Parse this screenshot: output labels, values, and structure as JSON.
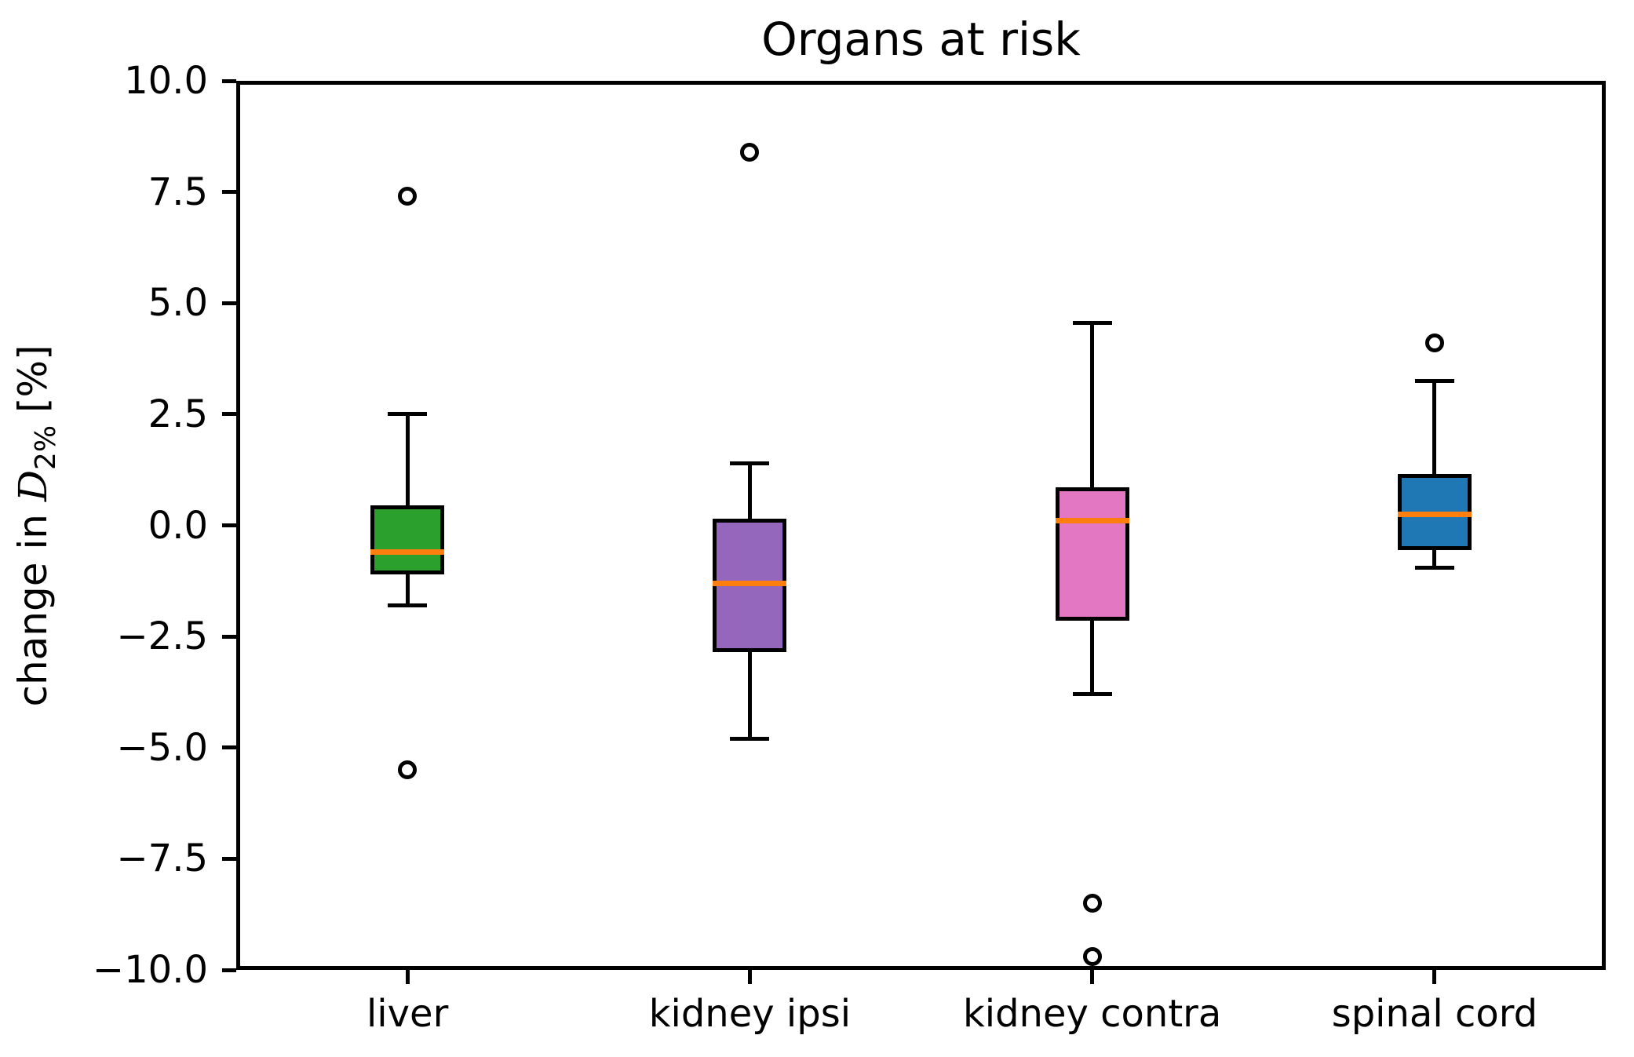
{
  "chart_data": {
    "type": "box",
    "title": "Organs at risk",
    "ylabel": {
      "prefix": "change in ",
      "symbol": "D",
      "subscript": "2%",
      "suffix": " [%]"
    },
    "ylim": [
      -10,
      10
    ],
    "ytick_values": [
      10.0,
      7.5,
      5.0,
      2.5,
      0.0,
      -2.5,
      -5.0,
      -7.5,
      -10.0
    ],
    "ytick_labels": [
      "10.0",
      "7.5",
      "5.0",
      "2.5",
      "0.0",
      "−2.5",
      "−5.0",
      "−7.5",
      "−10.0"
    ],
    "categories": [
      "liver",
      "kidney ipsi",
      "kidney contra",
      "spinal cord"
    ],
    "series": [
      {
        "name": "liver",
        "color": "#2ca02c",
        "whisker_low": -1.8,
        "q1": -1.1,
        "median": -0.6,
        "q3": 0.45,
        "whisker_high": 2.5,
        "outliers": [
          7.4,
          -5.5
        ]
      },
      {
        "name": "kidney ipsi",
        "color": "#9467bd",
        "whisker_low": -4.8,
        "q1": -2.85,
        "median": -1.3,
        "q3": 0.15,
        "whisker_high": 1.4,
        "outliers": [
          8.4
        ]
      },
      {
        "name": "kidney contra",
        "color": "#e377c2",
        "whisker_low": -3.8,
        "q1": -2.15,
        "median": 0.1,
        "q3": 0.85,
        "whisker_high": 4.55,
        "outliers": [
          -8.5,
          -9.7
        ]
      },
      {
        "name": "spinal cord",
        "color": "#1f77b4",
        "whisker_low": -0.95,
        "q1": -0.55,
        "median": 0.25,
        "q3": 1.15,
        "whisker_high": 3.25,
        "outliers": [
          4.1
        ]
      }
    ],
    "median_color": "#ff7f0e",
    "grid": true,
    "grid_color": "#b0b0b0",
    "legend": "none"
  }
}
